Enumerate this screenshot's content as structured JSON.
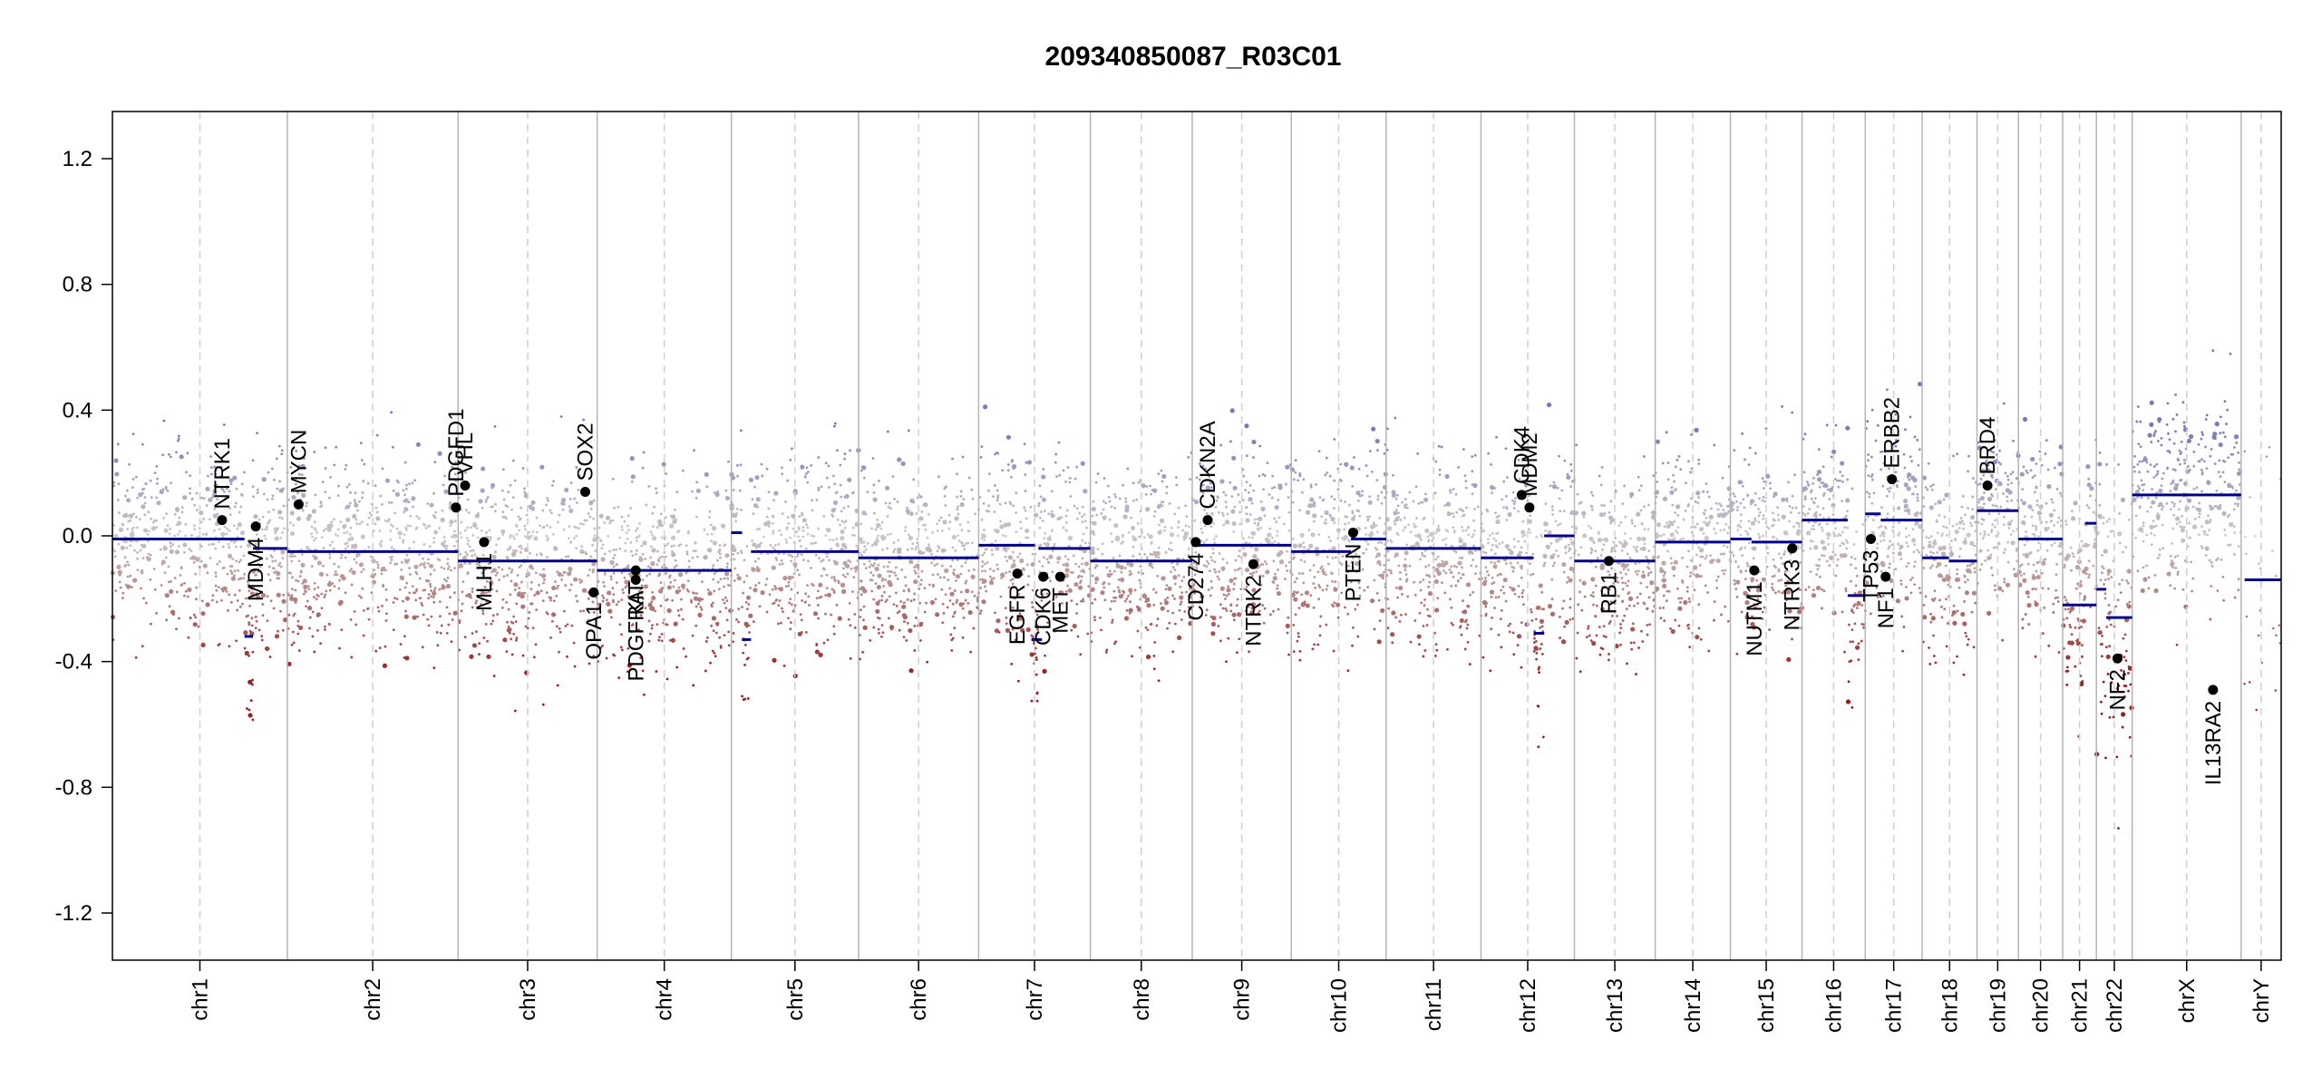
{
  "chart_data": {
    "type": "scatter",
    "title": "209340850087_R03C01",
    "xlabel": "",
    "ylabel": "",
    "ylim": [
      -1.35,
      1.35
    ],
    "yticks": [
      1.2,
      0.8,
      0.4,
      0.0,
      -0.4,
      -0.8,
      -1.2
    ],
    "ytick_labels": [
      "1.2",
      "0.8",
      "0.4",
      "0.0",
      "-0.4",
      "-0.8",
      "-1.2"
    ],
    "grid": false,
    "colors": {
      "segment": "#00008b",
      "gain": "#8f8fc0",
      "loss": "#9c2a2a",
      "neutral": "#c8c8c8",
      "gene_dot": "#000000"
    },
    "chromosomes": [
      {
        "name": "chr1",
        "size": 249.0
      },
      {
        "name": "chr2",
        "size": 243.0
      },
      {
        "name": "chr3",
        "size": 198.0
      },
      {
        "name": "chr4",
        "size": 191.0
      },
      {
        "name": "chr5",
        "size": 181.0
      },
      {
        "name": "chr6",
        "size": 171.0
      },
      {
        "name": "chr7",
        "size": 159.0
      },
      {
        "name": "chr8",
        "size": 145.0
      },
      {
        "name": "chr9",
        "size": 141.0
      },
      {
        "name": "chr10",
        "size": 135.0
      },
      {
        "name": "chr11",
        "size": 135.0
      },
      {
        "name": "chr12",
        "size": 133.0
      },
      {
        "name": "chr13",
        "size": 115.0
      },
      {
        "name": "chr14",
        "size": 107.0
      },
      {
        "name": "chr15",
        "size": 102.0
      },
      {
        "name": "chr16",
        "size": 90.0
      },
      {
        "name": "chr17",
        "size": 81.0
      },
      {
        "name": "chr18",
        "size": 78.0
      },
      {
        "name": "chr19",
        "size": 59.0
      },
      {
        "name": "chr20",
        "size": 63.0
      },
      {
        "name": "chr21",
        "size": 48.0
      },
      {
        "name": "chr22",
        "size": 51.0
      },
      {
        "name": "chrX",
        "size": 155.0
      },
      {
        "name": "chrY",
        "size": 57.0
      }
    ],
    "segments": [
      {
        "chr": "chr1",
        "start": 0,
        "end": 188,
        "value": -0.01
      },
      {
        "chr": "chr1",
        "start": 188,
        "end": 200,
        "value": -0.32
      },
      {
        "chr": "chr1",
        "start": 200,
        "end": 249,
        "value": -0.04
      },
      {
        "chr": "chr2",
        "start": 0,
        "end": 243,
        "value": -0.05
      },
      {
        "chr": "chr3",
        "start": 0,
        "end": 198,
        "value": -0.08
      },
      {
        "chr": "chr4",
        "start": 0,
        "end": 191,
        "value": -0.11
      },
      {
        "chr": "chr5",
        "start": 0,
        "end": 15,
        "value": 0.01
      },
      {
        "chr": "chr5",
        "start": 15,
        "end": 28,
        "value": -0.33
      },
      {
        "chr": "chr5",
        "start": 28,
        "end": 181,
        "value": -0.05
      },
      {
        "chr": "chr6",
        "start": 0,
        "end": 171,
        "value": -0.07
      },
      {
        "chr": "chr7",
        "start": 0,
        "end": 80,
        "value": -0.03
      },
      {
        "chr": "chr7",
        "start": 75,
        "end": 90,
        "value": -0.33
      },
      {
        "chr": "chr7",
        "start": 85,
        "end": 159,
        "value": -0.04
      },
      {
        "chr": "chr8",
        "start": 0,
        "end": 145,
        "value": -0.08
      },
      {
        "chr": "chr9",
        "start": 0,
        "end": 141,
        "value": -0.03
      },
      {
        "chr": "chr10",
        "start": 0,
        "end": 85,
        "value": -0.05
      },
      {
        "chr": "chr10",
        "start": 85,
        "end": 135,
        "value": -0.01
      },
      {
        "chr": "chr11",
        "start": 0,
        "end": 135,
        "value": -0.04
      },
      {
        "chr": "chr12",
        "start": 0,
        "end": 75,
        "value": -0.07
      },
      {
        "chr": "chr12",
        "start": 75,
        "end": 90,
        "value": -0.31
      },
      {
        "chr": "chr12",
        "start": 90,
        "end": 133,
        "value": 0.0
      },
      {
        "chr": "chr13",
        "start": 0,
        "end": 115,
        "value": -0.08
      },
      {
        "chr": "chr14",
        "start": 0,
        "end": 107,
        "value": -0.02
      },
      {
        "chr": "chr15",
        "start": 0,
        "end": 30,
        "value": -0.01
      },
      {
        "chr": "chr15",
        "start": 30,
        "end": 102,
        "value": -0.02
      },
      {
        "chr": "chr16",
        "start": 0,
        "end": 65,
        "value": 0.05
      },
      {
        "chr": "chr16",
        "start": 65,
        "end": 90,
        "value": -0.19
      },
      {
        "chr": "chr17",
        "start": 0,
        "end": 22,
        "value": 0.07
      },
      {
        "chr": "chr17",
        "start": 22,
        "end": 81,
        "value": 0.05
      },
      {
        "chr": "chr18",
        "start": 0,
        "end": 38,
        "value": -0.07
      },
      {
        "chr": "chr18",
        "start": 38,
        "end": 78,
        "value": -0.08
      },
      {
        "chr": "chr19",
        "start": 0,
        "end": 59,
        "value": 0.08
      },
      {
        "chr": "chr20",
        "start": 0,
        "end": 63,
        "value": -0.01
      },
      {
        "chr": "chr21",
        "start": 0,
        "end": 48,
        "value": -0.22
      },
      {
        "chr": "chr21",
        "start": 32,
        "end": 48,
        "value": 0.04
      },
      {
        "chr": "chr22",
        "start": 0,
        "end": 14,
        "value": -0.17
      },
      {
        "chr": "chr22",
        "start": 14,
        "end": 51,
        "value": -0.26
      },
      {
        "chr": "chrX",
        "start": 0,
        "end": 155,
        "value": 0.13
      },
      {
        "chr": "chrY",
        "start": 5,
        "end": 57,
        "value": -0.14
      }
    ],
    "genes": [
      {
        "name": "NTRK1",
        "chr": "chr1",
        "pos": 156,
        "value": 0.05
      },
      {
        "name": "MDM4",
        "chr": "chr1",
        "pos": 204,
        "value": 0.03
      },
      {
        "name": "MYCN",
        "chr": "chr2",
        "pos": 16,
        "value": 0.1
      },
      {
        "name": "PDGFD1",
        "chr": "chr2",
        "pos": 240,
        "value": 0.09
      },
      {
        "name": "VHL",
        "chr": "chr3",
        "pos": 10,
        "value": 0.16
      },
      {
        "name": "MLH1",
        "chr": "chr3",
        "pos": 37,
        "value": -0.02
      },
      {
        "name": "SOX2",
        "chr": "chr3",
        "pos": 181,
        "value": 0.14
      },
      {
        "name": "OPA1",
        "chr": "chr3",
        "pos": 193,
        "value": -0.18
      },
      {
        "name": "PDGFRA",
        "chr": "chr4",
        "pos": 55,
        "value": -0.14
      },
      {
        "name": "KIT",
        "chr": "chr4",
        "pos": 55,
        "value": -0.11
      },
      {
        "name": "EGFR",
        "chr": "chr7",
        "pos": 55,
        "value": -0.12
      },
      {
        "name": "CDK6",
        "chr": "chr7",
        "pos": 92,
        "value": -0.13
      },
      {
        "name": "MET",
        "chr": "chr7",
        "pos": 116,
        "value": -0.13
      },
      {
        "name": "CD274",
        "chr": "chr9",
        "pos": 5,
        "value": -0.02
      },
      {
        "name": "CDKN2A",
        "chr": "chr9",
        "pos": 22,
        "value": 0.05
      },
      {
        "name": "NTRK2",
        "chr": "chr9",
        "pos": 87,
        "value": -0.09
      },
      {
        "name": "PTEN",
        "chr": "chr10",
        "pos": 88,
        "value": 0.01
      },
      {
        "name": "CDK4",
        "chr": "chr12",
        "pos": 58,
        "value": 0.13
      },
      {
        "name": "MDM2",
        "chr": "chr12",
        "pos": 69,
        "value": 0.09
      },
      {
        "name": "RB1",
        "chr": "chr13",
        "pos": 49,
        "value": -0.08
      },
      {
        "name": "NUTM1",
        "chr": "chr15",
        "pos": 34,
        "value": -0.11
      },
      {
        "name": "NTRK3",
        "chr": "chr15",
        "pos": 88,
        "value": -0.04
      },
      {
        "name": "TP53",
        "chr": "chr17",
        "pos": 8,
        "value": -0.01
      },
      {
        "name": "NF1",
        "chr": "chr17",
        "pos": 29,
        "value": -0.13
      },
      {
        "name": "ERBB2",
        "chr": "chr17",
        "pos": 38,
        "value": 0.18
      },
      {
        "name": "BRD4",
        "chr": "chr19",
        "pos": 15,
        "value": 0.16
      },
      {
        "name": "NF2",
        "chr": "chr22",
        "pos": 30,
        "value": -0.39
      },
      {
        "name": "IL13RA2",
        "chr": "chrX",
        "pos": 115,
        "value": -0.49
      }
    ]
  }
}
